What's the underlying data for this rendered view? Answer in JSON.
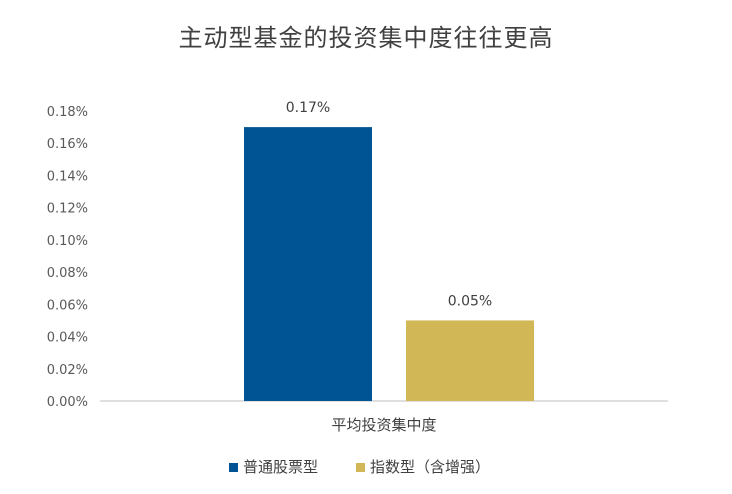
{
  "chart_data": {
    "type": "bar",
    "title": "主动型基金的投资集中度往往更高",
    "categories": [
      "平均投资集中度"
    ],
    "series": [
      {
        "name": "普通股票型",
        "values": [
          0.17
        ],
        "color": "#005493",
        "label": "0.17%"
      },
      {
        "name": "指数型（含增强）",
        "values": [
          0.05
        ],
        "color": "#D1B755",
        "label": "0.05%"
      }
    ],
    "ylim": [
      0,
      0.18
    ],
    "yticks": [
      "0.00%",
      "0.02%",
      "0.04%",
      "0.06%",
      "0.08%",
      "0.10%",
      "0.12%",
      "0.14%",
      "0.16%",
      "0.18%"
    ],
    "ytick_values": [
      0,
      0.02,
      0.04,
      0.06,
      0.08,
      0.1,
      0.12,
      0.14,
      0.16,
      0.18
    ],
    "grid": false,
    "legend": "bottom",
    "xlabel": "",
    "ylabel": ""
  }
}
